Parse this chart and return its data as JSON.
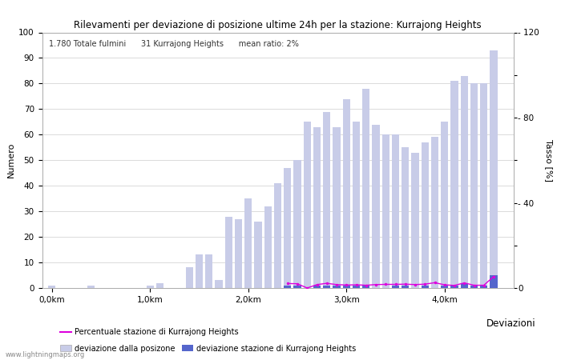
{
  "title": "Rilevamenti per deviazione di posizione ultime 24h per la stazione: Kurrajong Heights",
  "annotation": "1.780 Totale fulmini      31 Kurrajong Heights      mean ratio: 2%",
  "ylabel_left": "Numero",
  "ylabel_right": "Tasso [%]",
  "right_axis_label": "Deviazioni",
  "ylim_left": [
    0,
    100
  ],
  "ylim_right": [
    0,
    120
  ],
  "right_yticks": [
    0,
    20,
    40,
    60,
    80,
    100,
    120
  ],
  "right_yticklabels": [
    "0",
    "",
    "- 40",
    "",
    "- 80",
    "",
    "- 120"
  ],
  "watermark": "www.lightningmaps.org",
  "legend_entries": [
    "deviazione dalla posizone",
    "deviazione stazione di Kurrajong Heights",
    "Percentuale stazione di Kurrajong Heights"
  ],
  "bar_positions": [
    0.0,
    0.1,
    0.2,
    0.3,
    0.4,
    0.5,
    0.6,
    0.7,
    0.8,
    0.9,
    1.0,
    1.1,
    1.2,
    1.3,
    1.4,
    1.5,
    1.6,
    1.7,
    1.8,
    1.9,
    2.0,
    2.1,
    2.2,
    2.3,
    2.4,
    2.5,
    2.6,
    2.7,
    2.8,
    2.9,
    3.0,
    3.1,
    3.2,
    3.3,
    3.4,
    3.5,
    3.6,
    3.7,
    3.8,
    3.9,
    4.0,
    4.1,
    4.2,
    4.3,
    4.4,
    4.5
  ],
  "bar_values": [
    1,
    0,
    0,
    0,
    1,
    0,
    0,
    0,
    0,
    0,
    1,
    2,
    0,
    0,
    8,
    13,
    13,
    3,
    28,
    27,
    35,
    26,
    32,
    41,
    47,
    50,
    65,
    63,
    69,
    63,
    74,
    65,
    78,
    64,
    60,
    60,
    55,
    53,
    57,
    59,
    65,
    81,
    83,
    80,
    80,
    93
  ],
  "station_bar_positions": [
    2.4,
    2.5,
    2.7,
    2.8,
    2.9,
    3.0,
    3.1,
    3.2,
    3.5,
    3.6,
    3.8,
    4.0,
    4.1,
    4.2,
    4.3,
    4.4,
    4.5
  ],
  "station_bar_values": [
    1,
    1,
    1,
    1,
    1,
    1,
    1,
    1,
    1,
    1,
    1,
    1,
    1,
    2,
    1,
    1,
    5
  ],
  "percentage_x": [
    2.4,
    2.5,
    2.6,
    2.7,
    2.8,
    2.9,
    3.0,
    3.1,
    3.2,
    3.3,
    3.4,
    3.5,
    3.6,
    3.7,
    3.8,
    3.9,
    4.0,
    4.1,
    4.2,
    4.3,
    4.4,
    4.5
  ],
  "percentage_y": [
    2.1,
    2.0,
    0.0,
    1.6,
    2.2,
    1.6,
    1.4,
    1.5,
    1.3,
    1.6,
    1.7,
    1.7,
    1.8,
    1.6,
    1.8,
    2.5,
    1.5,
    1.2,
    2.4,
    1.3,
    1.3,
    5.4
  ],
  "bar_color_light": "#c8cce8",
  "bar_color_dark": "#5566cc",
  "line_color": "#dd00dd",
  "background_color": "#ffffff",
  "grid_color": "#cccccc",
  "bar_width": 0.075,
  "xlim": [
    -0.1,
    4.7
  ],
  "xticks": [
    0.0,
    1.0,
    2.0,
    3.0,
    4.0
  ],
  "xticklabels": [
    "0,0km",
    "1,0km",
    "2,0km",
    "3,0km",
    "4,0km"
  ]
}
